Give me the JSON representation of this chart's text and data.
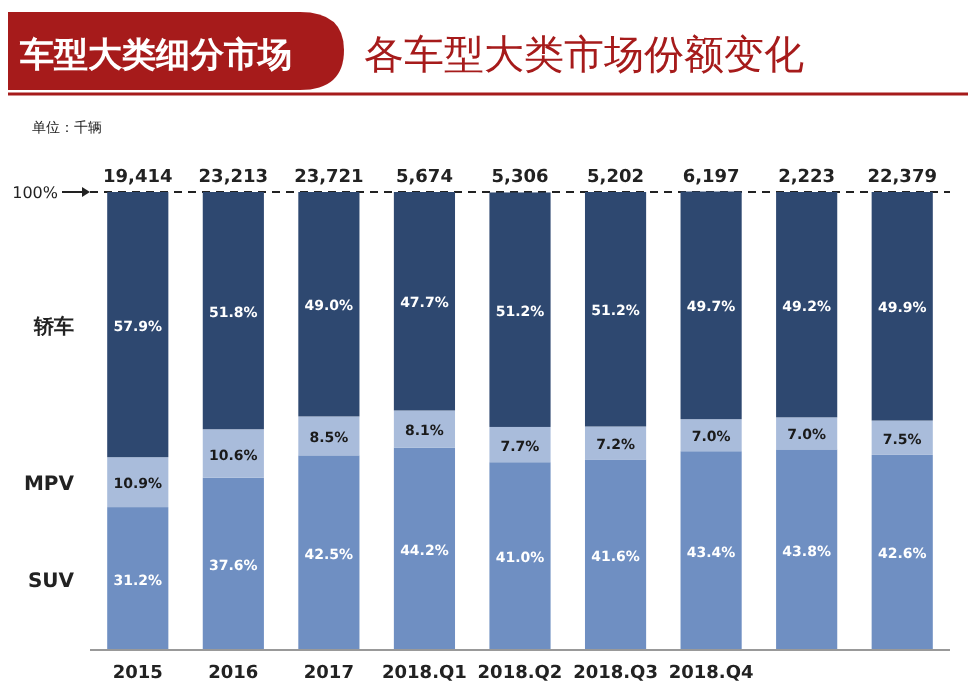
{
  "chart_data": {
    "type": "bar",
    "title": "车型大类细分市场",
    "subtitle": "各车型大类市场份额变化",
    "annotations": [
      "单位：千辆",
      {
        "text": "19,414",
        "x": "2015",
        "y": 100
      },
      {
        "text": "23,213",
        "x": "2016",
        "y": 100
      },
      {
        "text": "23,721",
        "x": "2017",
        "y": 100
      },
      {
        "text": "5,674",
        "x": "2018.Q1",
        "y": 100
      },
      {
        "text": "5,306",
        "x": "2018.Q2",
        "y": 100
      },
      {
        "text": "5,202",
        "x": "2018.Q3",
        "y": 100
      },
      {
        "text": "6,197",
        "x": "2018.Q4",
        "y": 100
      },
      {
        "text": "2,223",
        "y": 100
      },
      {
        "text": "22,379",
        "y": 100
      }
    ],
    "categories": [
      "2015",
      "2016",
      "2017",
      "2018.Q1",
      "2018.Q2",
      "2018.Q3",
      "2018.Q4",
      null,
      null
    ],
    "stacked": true,
    "series": [
      {
        "name": "SUV",
        "color": "#6f8fc2",
        "values": [
          31.2,
          37.6,
          42.5,
          44.2,
          41.0,
          41.6,
          43.4,
          43.8,
          42.6
        ],
        "value_labels": [
          "31.2%",
          "37.6%",
          "42.5%",
          "44.2%",
          "41.0%",
          "41.6%",
          "43.4%",
          "43.8%",
          "42.6%"
        ]
      },
      {
        "name": "MPV",
        "color": "#a9bcdb",
        "values": [
          10.9,
          10.6,
          8.5,
          8.1,
          7.7,
          7.2,
          7.0,
          7.0,
          7.5
        ],
        "value_labels": [
          "10.9%",
          "10.6%",
          "8.5%",
          "8.1%",
          "7.7%",
          "7.2%",
          "7.0%",
          "7.0%",
          "7.5%"
        ]
      },
      {
        "name": "轿车",
        "color": "#2e4870",
        "values": [
          57.9,
          51.8,
          49.0,
          47.7,
          51.2,
          51.2,
          49.7,
          49.2,
          49.9
        ],
        "value_labels": [
          "57.9%",
          "51.8%",
          "49.0%",
          "47.7%",
          "51.2%",
          "51.2%",
          "49.7%",
          "49.2%",
          "49.9%"
        ]
      }
    ],
    "ylim": [
      0,
      100
    ],
    "yticks": [
      {
        "value": 100,
        "label": "100%"
      }
    ],
    "ref_lines": [
      {
        "axis": "y",
        "value": 100,
        "line_style": "dashed",
        "color": "#222222"
      }
    ]
  }
}
